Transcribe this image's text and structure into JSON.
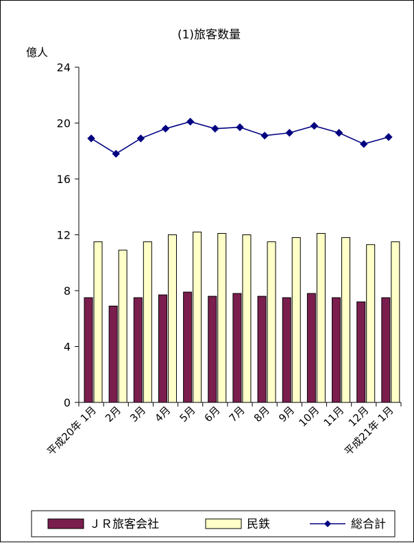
{
  "chart_data": {
    "type": "bar",
    "title": "(1)旅客数量",
    "ylabel": "億人",
    "xlabel": "",
    "ylim": [
      0,
      24
    ],
    "yticks": [
      0,
      4,
      8,
      12,
      16,
      20,
      24
    ],
    "grid": false,
    "legend_position": "bottom",
    "categories": [
      "平成20年 1月",
      "2月",
      "3月",
      "4月",
      "5月",
      "6月",
      "7月",
      "8月",
      "9月",
      "10月",
      "11月",
      "12月",
      "平成21年 1月"
    ],
    "series": [
      {
        "name": "ＪＲ旅客会社",
        "kind": "bar",
        "color": "#7a1e4e",
        "values": [
          7.5,
          6.9,
          7.5,
          7.7,
          7.9,
          7.6,
          7.8,
          7.6,
          7.5,
          7.8,
          7.5,
          7.2,
          7.5
        ]
      },
      {
        "name": "民鉄",
        "kind": "bar",
        "color": "#ffffc8",
        "values": [
          11.5,
          10.9,
          11.5,
          12.0,
          12.2,
          12.1,
          12.0,
          11.5,
          11.8,
          12.1,
          11.8,
          11.3,
          11.5
        ]
      },
      {
        "name": "総合計",
        "kind": "line",
        "color": "#000080",
        "values": [
          18.9,
          17.8,
          18.9,
          19.6,
          20.1,
          19.6,
          19.7,
          19.1,
          19.3,
          19.8,
          19.3,
          18.5,
          19.0
        ]
      }
    ]
  }
}
